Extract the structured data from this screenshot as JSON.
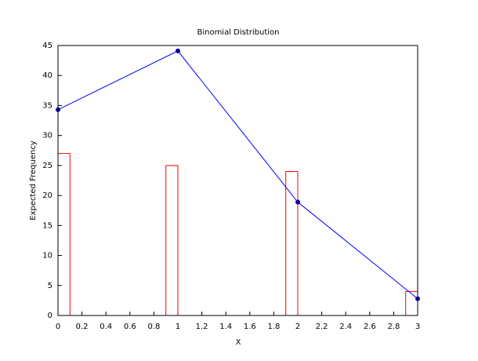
{
  "chart_data": {
    "type": "combo",
    "title": "Binomial Distribution",
    "x_label": "X",
    "y_label": "Expected Frequency",
    "xlim": [
      0,
      3
    ],
    "ylim": [
      0,
      45
    ],
    "xticks": [
      0,
      0.2,
      0.4,
      0.6,
      0.8,
      1,
      1.2,
      1.4,
      1.6,
      1.8,
      2,
      2.2,
      2.4,
      2.6,
      2.8,
      3
    ],
    "yticks": [
      0,
      5,
      10,
      15,
      20,
      25,
      30,
      35,
      40,
      45
    ],
    "series": [
      {
        "type": "bar",
        "color": "#ff0000",
        "x": [
          0,
          1,
          2,
          3
        ],
        "values": [
          27,
          25,
          24,
          4
        ]
      },
      {
        "type": "line",
        "color": "#0000ff",
        "marker_color": "#0000aa",
        "x": [
          0,
          1,
          2,
          3
        ],
        "values": [
          34.3,
          44.1,
          18.9,
          2.8
        ]
      }
    ]
  }
}
